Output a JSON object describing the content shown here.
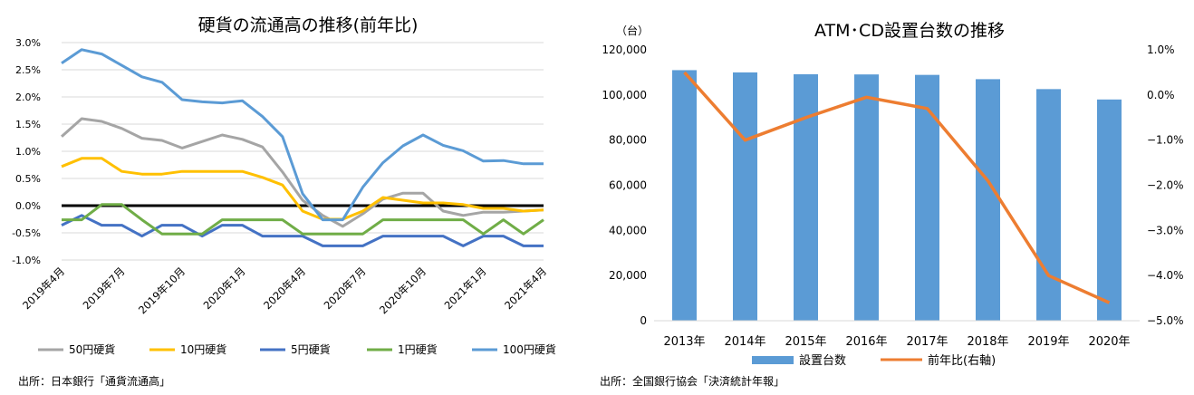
{
  "chart_data": [
    {
      "type": "line",
      "title": "硬貨の流通高の推移(前年比)",
      "x_labels": [
        "2019年4月",
        "2019年7月",
        "2019年10月",
        "2020年1月",
        "2020年4月",
        "2020年7月",
        "2020年10月",
        "2021年1月",
        "2021年4月"
      ],
      "y_ticks": [
        "3.0%",
        "2.5%",
        "2.0%",
        "1.5%",
        "1.0%",
        "0.5%",
        "0.0%",
        "-0.5%",
        "-1.0%"
      ],
      "ylim": [
        -1.0,
        3.0
      ],
      "series": [
        {
          "name": "50円硬貨",
          "color": "#a5a5a5",
          "values": [
            1.27,
            1.6,
            1.55,
            1.42,
            1.24,
            1.2,
            1.06,
            1.18,
            1.3,
            1.22,
            1.08,
            0.62,
            0.1,
            -0.18,
            -0.38,
            -0.15,
            0.12,
            0.23,
            0.23,
            -0.1,
            -0.18,
            -0.12,
            -0.12,
            -0.1,
            -0.08
          ]
        },
        {
          "name": "10円硬貨",
          "color": "#ffc000",
          "values": [
            0.72,
            0.87,
            0.87,
            0.63,
            0.58,
            0.58,
            0.63,
            0.63,
            0.63,
            0.63,
            0.52,
            0.38,
            -0.1,
            -0.25,
            -0.25,
            -0.1,
            0.15,
            0.1,
            0.05,
            0.05,
            0.02,
            -0.05,
            -0.05,
            -0.1,
            -0.08
          ]
        },
        {
          "name": "5円硬貨",
          "color": "#4472c4",
          "values": [
            -0.36,
            -0.18,
            -0.36,
            -0.36,
            -0.56,
            -0.36,
            -0.36,
            -0.56,
            -0.36,
            -0.36,
            -0.56,
            -0.56,
            -0.56,
            -0.74,
            -0.74,
            -0.74,
            -0.56,
            -0.56,
            -0.56,
            -0.56,
            -0.74,
            -0.56,
            -0.56,
            -0.74,
            -0.74
          ]
        },
        {
          "name": "1円硬貨",
          "color": "#70ad47",
          "values": [
            -0.26,
            -0.26,
            0.02,
            0.02,
            -0.26,
            -0.52,
            -0.52,
            -0.52,
            -0.26,
            -0.26,
            -0.26,
            -0.26,
            -0.52,
            -0.52,
            -0.52,
            -0.52,
            -0.26,
            -0.26,
            -0.26,
            -0.26,
            -0.26,
            -0.52,
            -0.26,
            -0.52,
            -0.26
          ]
        },
        {
          "name": "100円硬貨",
          "color": "#5b9bd5",
          "values": [
            2.62,
            2.87,
            2.79,
            2.58,
            2.37,
            2.27,
            1.95,
            1.91,
            1.89,
            1.93,
            1.64,
            1.27,
            0.22,
            -0.26,
            -0.26,
            0.34,
            0.79,
            1.1,
            1.3,
            1.11,
            1.01,
            0.82,
            0.83,
            0.77,
            0.77
          ]
        }
      ],
      "zero_line_color": "#000000",
      "legend_position": "bottom",
      "source": "出所：日本銀行「通貨流通高」"
    },
    {
      "type": "bar+line",
      "title": "ATM･CD設置台数の推移",
      "left_axis_unit": "（台）",
      "categories": [
        "2013年",
        "2014年",
        "2015年",
        "2016年",
        "2017年",
        "2018年",
        "2019年",
        "2020年"
      ],
      "left_ticks": [
        "120,000",
        "100,000",
        "80,000",
        "60,000",
        "40,000",
        "20,000",
        "0"
      ],
      "right_ticks": [
        "1.0%",
        "0.0%",
        "−1.0%",
        "−2.0%",
        "−3.0%",
        "−4.0%",
        "−5.0%"
      ],
      "left_ylim": [
        0,
        120000
      ],
      "right_ylim": [
        -5.0,
        1.0
      ],
      "series": [
        {
          "name": "設置台数",
          "kind": "bar",
          "axis": "left",
          "color": "#5b9bd5",
          "values": [
            111000,
            110000,
            109200,
            109100,
            108900,
            107000,
            102600,
            98000
          ]
        },
        {
          "name": "前年比(右軸)",
          "kind": "line",
          "axis": "right",
          "color": "#ed7d31",
          "values": [
            0.5,
            -1.0,
            -0.5,
            -0.05,
            -0.3,
            -1.9,
            -4.0,
            -4.6
          ]
        }
      ],
      "legend_position": "bottom",
      "source": "出所：全国銀行協会「決済統計年報」"
    }
  ]
}
